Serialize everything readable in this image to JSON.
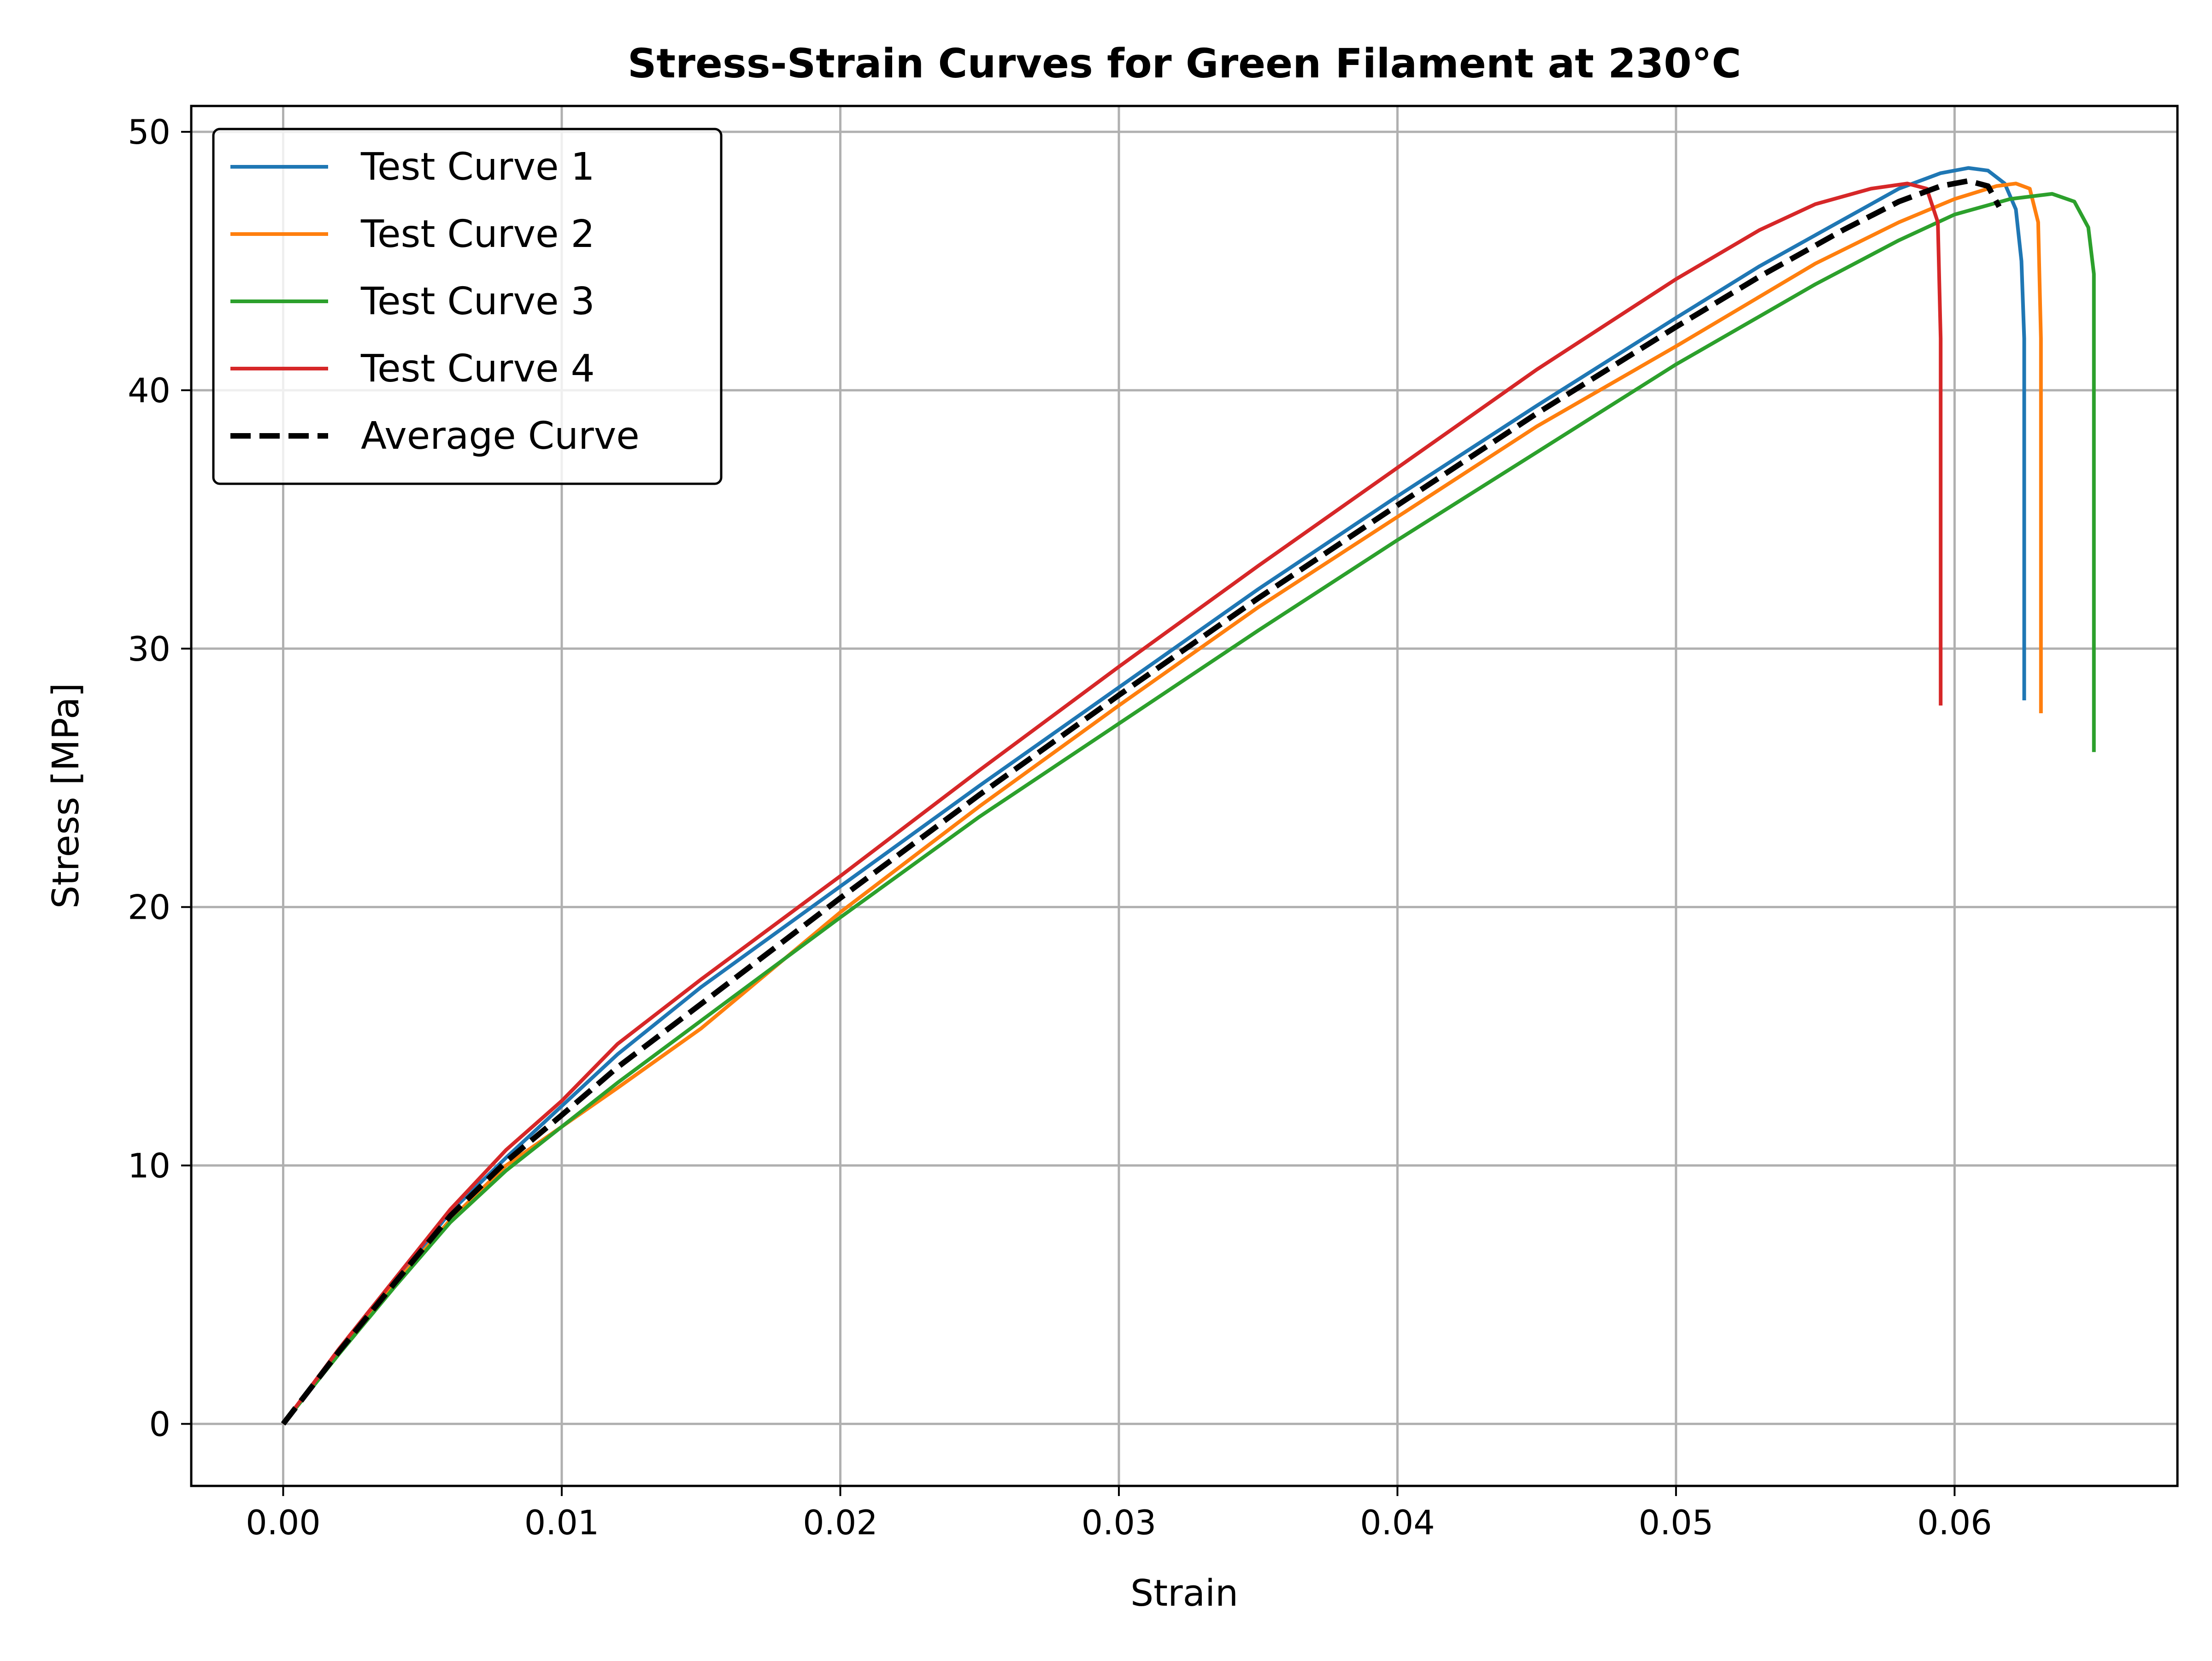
{
  "chart_data": {
    "type": "line",
    "title": "Stress-Strain Curves for Green Filament at 230°C",
    "xlabel": "Strain",
    "ylabel": "Stress [MPa]",
    "xlim": [
      -0.0033,
      0.068
    ],
    "ylim": [
      -2.4,
      51.0
    ],
    "x_ticks": [
      0.0,
      0.01,
      0.02,
      0.03,
      0.04,
      0.05,
      0.06
    ],
    "x_tick_labels": [
      "0.00",
      "0.01",
      "0.02",
      "0.03",
      "0.04",
      "0.05",
      "0.06"
    ],
    "y_ticks": [
      0,
      10,
      20,
      30,
      40,
      50
    ],
    "y_tick_labels": [
      "0",
      "10",
      "20",
      "30",
      "40",
      "50"
    ],
    "grid": true,
    "legend_position": "upper-left",
    "series": [
      {
        "name": "Test Curve 1",
        "color": "#1f77b4",
        "style": "solid",
        "x": [
          0,
          0.002,
          0.004,
          0.006,
          0.008,
          0.01,
          0.012,
          0.015,
          0.02,
          0.025,
          0.03,
          0.035,
          0.04,
          0.045,
          0.05,
          0.053,
          0.056,
          0.058,
          0.0595,
          0.0605,
          0.0612,
          0.0618,
          0.0622,
          0.0624,
          0.0625,
          0.0625
        ],
        "y": [
          0,
          2.8,
          5.5,
          8.2,
          10.3,
          12.3,
          14.3,
          16.9,
          20.8,
          24.7,
          28.5,
          32.3,
          35.9,
          39.4,
          42.8,
          44.8,
          46.6,
          47.8,
          48.4,
          48.6,
          48.5,
          48.0,
          47.0,
          45.0,
          42.0,
          28.0
        ]
      },
      {
        "name": "Test Curve 2",
        "color": "#ff7f0e",
        "style": "solid",
        "x": [
          0,
          0.002,
          0.004,
          0.006,
          0.008,
          0.01,
          0.012,
          0.015,
          0.02,
          0.025,
          0.03,
          0.035,
          0.04,
          0.045,
          0.05,
          0.055,
          0.058,
          0.06,
          0.0615,
          0.0622,
          0.0627,
          0.063,
          0.0631,
          0.0631
        ],
        "y": [
          0,
          2.8,
          5.4,
          7.9,
          10.0,
          11.5,
          13.0,
          15.3,
          19.8,
          23.9,
          27.8,
          31.6,
          35.1,
          38.6,
          41.7,
          44.9,
          46.5,
          47.4,
          47.9,
          48.0,
          47.8,
          46.5,
          42.0,
          27.5
        ]
      },
      {
        "name": "Test Curve 3",
        "color": "#2ca02c",
        "style": "solid",
        "x": [
          0,
          0.002,
          0.004,
          0.006,
          0.008,
          0.01,
          0.012,
          0.015,
          0.02,
          0.025,
          0.03,
          0.035,
          0.04,
          0.045,
          0.05,
          0.055,
          0.058,
          0.06,
          0.062,
          0.0635,
          0.0643,
          0.0648,
          0.065,
          0.065
        ],
        "y": [
          0,
          2.7,
          5.3,
          7.8,
          9.8,
          11.5,
          13.2,
          15.6,
          19.6,
          23.5,
          27.1,
          30.7,
          34.2,
          37.6,
          41.0,
          44.1,
          45.8,
          46.8,
          47.4,
          47.6,
          47.3,
          46.3,
          44.5,
          26.0
        ]
      },
      {
        "name": "Test Curve 4",
        "color": "#d62728",
        "style": "solid",
        "x": [
          0,
          0.002,
          0.004,
          0.006,
          0.008,
          0.01,
          0.012,
          0.015,
          0.02,
          0.025,
          0.03,
          0.035,
          0.04,
          0.045,
          0.05,
          0.053,
          0.055,
          0.057,
          0.0583,
          0.059,
          0.0594,
          0.0595,
          0.0595
        ],
        "y": [
          0,
          2.9,
          5.6,
          8.3,
          10.6,
          12.5,
          14.7,
          17.2,
          21.2,
          25.3,
          29.3,
          33.2,
          37.0,
          40.8,
          44.3,
          46.2,
          47.2,
          47.8,
          48.0,
          47.8,
          46.5,
          42.0,
          27.8
        ]
      },
      {
        "name": "Average Curve",
        "color": "#000000",
        "style": "dashed",
        "x": [
          0,
          0.002,
          0.004,
          0.006,
          0.008,
          0.01,
          0.012,
          0.015,
          0.02,
          0.025,
          0.03,
          0.035,
          0.04,
          0.045,
          0.05,
          0.053,
          0.056,
          0.058,
          0.0595,
          0.0605,
          0.0612,
          0.0616
        ],
        "y": [
          0,
          2.8,
          5.45,
          8.05,
          10.15,
          11.95,
          13.8,
          16.25,
          20.35,
          24.35,
          28.2,
          31.95,
          35.55,
          39.1,
          42.45,
          44.4,
          46.2,
          47.3,
          47.9,
          48.1,
          47.9,
          47.1
        ]
      }
    ]
  }
}
